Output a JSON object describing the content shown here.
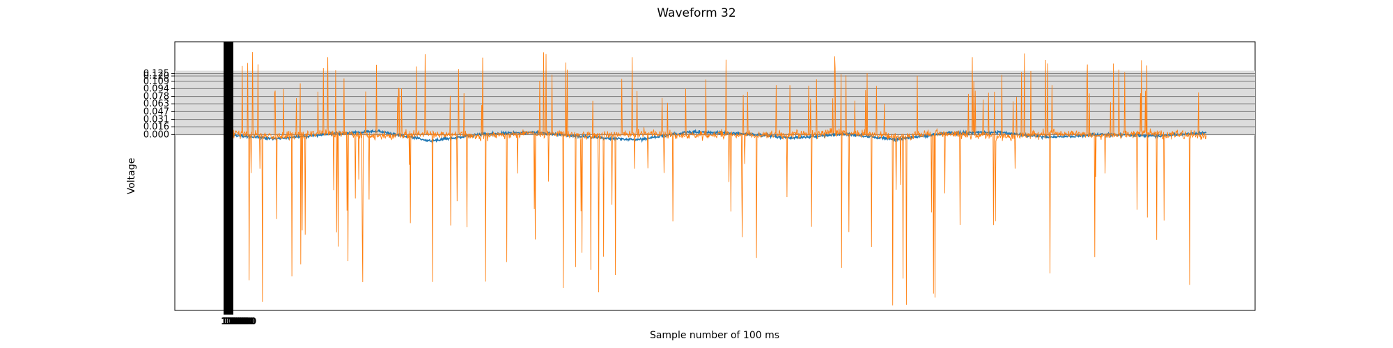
{
  "chart_data": {
    "type": "line",
    "title": "Waveform 32",
    "xlabel": "Sample number of 100 ms",
    "ylabel": "Voltage",
    "grid": "horizontal",
    "legend": "none",
    "ylim": [
      -0.36,
      0.19
    ],
    "sample_count": 2000,
    "y_ticks": [
      {
        "value": 0.0,
        "label": "0.000"
      },
      {
        "value": 0.016,
        "label": "0.016"
      },
      {
        "value": 0.031,
        "label": "0.031"
      },
      {
        "value": 0.047,
        "label": "0.047"
      },
      {
        "value": 0.063,
        "label": "0.063"
      },
      {
        "value": 0.078,
        "label": "0.078"
      },
      {
        "value": 0.094,
        "label": "0.094"
      },
      {
        "value": 0.109,
        "label": "0.109"
      },
      {
        "value": 0.12,
        "label": "0.120"
      },
      {
        "value": 0.125,
        "label": "0.125"
      }
    ],
    "x_ticks_text": "1000",
    "series": [
      {
        "color": "#1f77b4",
        "values": [
          0.002,
          -0.035,
          0.004,
          0.026,
          -0.052,
          0.003,
          0.018,
          -0.018,
          -0.043,
          0.021,
          0.009,
          -0.028,
          0.005,
          -0.039,
          0.012,
          0.017,
          -0.022,
          0.001,
          -0.01,
          0.015
        ]
      },
      {
        "color": "#ff7f0e",
        "values": [
          0.05,
          -0.15,
          0.12,
          -0.1,
          0.08,
          -0.12,
          0.14,
          -0.09,
          0.11,
          -0.08,
          0.02,
          -0.05,
          0.13,
          -0.11,
          0.09,
          -0.14,
          0.1,
          -0.06,
          0.04,
          -0.07
        ]
      }
    ]
  }
}
